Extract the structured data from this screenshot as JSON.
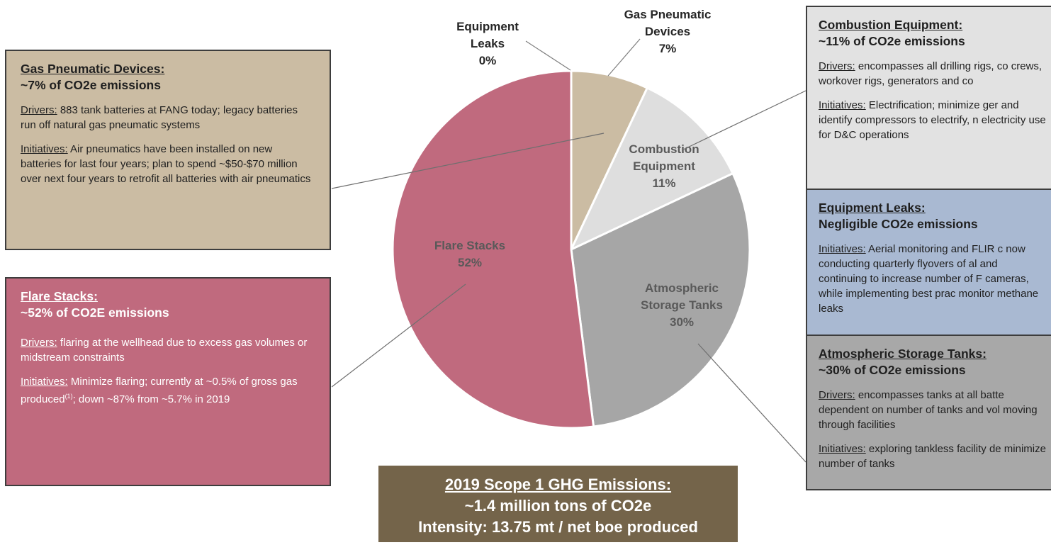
{
  "chart_data": {
    "type": "pie",
    "title": "",
    "slices": [
      {
        "name": "Equipment Leaks",
        "value": 0,
        "label_lines": [
          "Equipment",
          "Leaks",
          "0%"
        ],
        "color": "#a9b9d2"
      },
      {
        "name": "Gas Pneumatic Devices",
        "value": 7,
        "label_lines": [
          "Gas Pneumatic",
          "Devices",
          "7%"
        ],
        "color": "#cbbca3"
      },
      {
        "name": "Combustion Equipment",
        "value": 11,
        "label_lines": [
          "Combustion",
          "Equipment",
          "11%"
        ],
        "color": "#dedede"
      },
      {
        "name": "Atmospheric Storage Tanks",
        "value": 30,
        "label_lines": [
          "Atmospheric",
          "Storage Tanks",
          "30%"
        ],
        "color": "#a6a6a6"
      },
      {
        "name": "Flare Stacks",
        "value": 52,
        "label_lines": [
          "Flare Stacks",
          "52%"
        ],
        "color": "#c06a7e"
      }
    ],
    "label_color": "#595959"
  },
  "panels": {
    "gas": {
      "title": "Gas Pneumatic Devices:",
      "subtitle": "~7% of CO2e emissions",
      "drivers_label": "Drivers:",
      "drivers_text": " 883 tank batteries at FANG today; legacy batteries run off natural gas pneumatic systems",
      "initiatives_label": "Initiatives:",
      "initiatives_text": " Air pneumatics have been installed on new batteries for last four years; plan to spend ~$50-$70 million over next four years to retrofit all batteries with air pneumatics"
    },
    "flare": {
      "title": "Flare Stacks:",
      "subtitle": "~52% of CO2E emissions",
      "drivers_label": "Drivers:",
      "drivers_text": " flaring at the wellhead due to excess gas volumes or midstream constraints",
      "initiatives_label": "Initiatives:",
      "initiatives_text_a": " Minimize flaring; currently at ~0.5% of gross gas produced",
      "initiatives_sup": "(1)",
      "initiatives_text_b": "; down ~87% from ~5.7% in 2019"
    },
    "combustion": {
      "title": "Combustion Equipment:",
      "subtitle": "~11% of CO2e emissions",
      "drivers_label": "Drivers:",
      "drivers_text": " encompasses all drilling rigs, co crews, workover rigs, generators and co",
      "initiatives_label": "Initiatives:",
      "initiatives_text": " Electrification; minimize ger and identify compressors to electrify, n electricity use for D&C operations"
    },
    "leaks": {
      "title": "Equipment Leaks:",
      "subtitle": "Negligible CO2e emissions",
      "initiatives_label": "Initiatives:",
      "initiatives_text": " Aerial monitoring and FLIR c now conducting quarterly flyovers of al and continuing to increase number of F cameras, while implementing best prac monitor methane leaks"
    },
    "tanks": {
      "title": "Atmospheric Storage Tanks:",
      "subtitle": "~30% of CO2e emissions",
      "drivers_label": "Drivers:",
      "drivers_text": " encompasses tanks at all batte dependent on number of tanks and vol moving through facilities",
      "initiatives_label": "Initiatives:",
      "initiatives_text": " exploring tankless facility de minimize number of tanks"
    }
  },
  "summary": {
    "line1": "2019 Scope 1 GHG Emissions:",
    "line2": "~1.4 million tons of CO2e",
    "line3": "Intensity: 13.75 mt / net boe produced"
  },
  "colors": {
    "gas_box": "#cbbca3",
    "flare_box": "#c06a7e",
    "combustion_box": "#e2e2e2",
    "leaks_box": "#a9b9d2",
    "tanks_box": "#a8a8a8",
    "summary_box": "#74644a"
  }
}
